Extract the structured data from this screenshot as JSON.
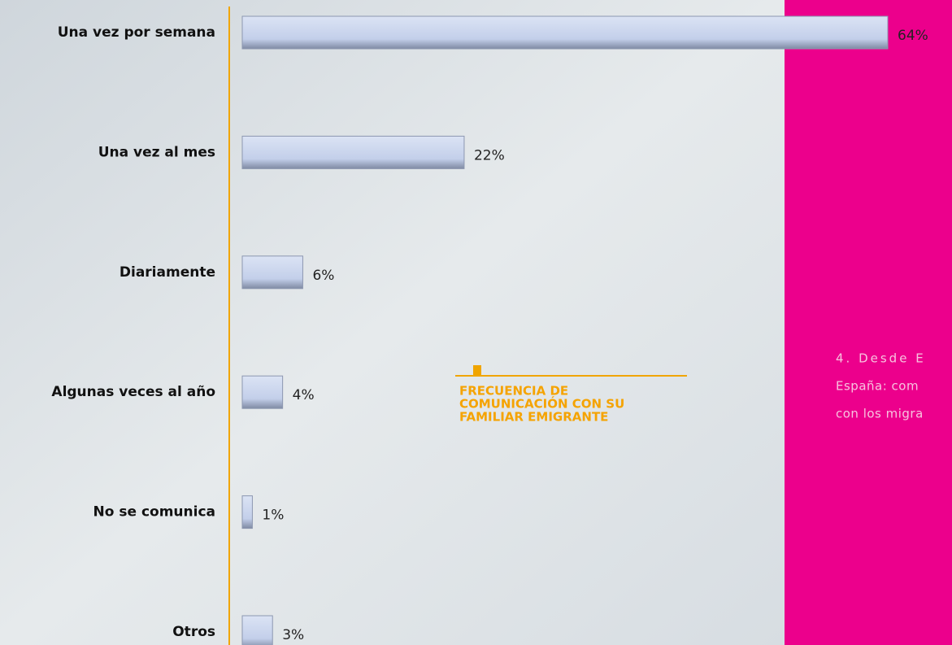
{
  "chart_data": {
    "type": "bar",
    "orientation": "horizontal",
    "title_lines": [
      "FRECUENCIA DE",
      "COMUNICACIÓN CON SU",
      "FAMILIAR EMIGRANTE"
    ],
    "categories": [
      "Una vez por semana",
      "Una vez al mes",
      "Diariamente",
      "Algunas veces al año",
      "No se comunica",
      "Otros"
    ],
    "values": [
      64,
      22,
      6,
      4,
      1,
      3
    ],
    "value_labels": [
      "64%",
      "22%",
      "6%",
      "4%",
      "1%",
      "3%"
    ],
    "color": "#c3cfea",
    "side_text": [
      "4. Desde E",
      "España: com",
      "con los migra"
    ]
  }
}
